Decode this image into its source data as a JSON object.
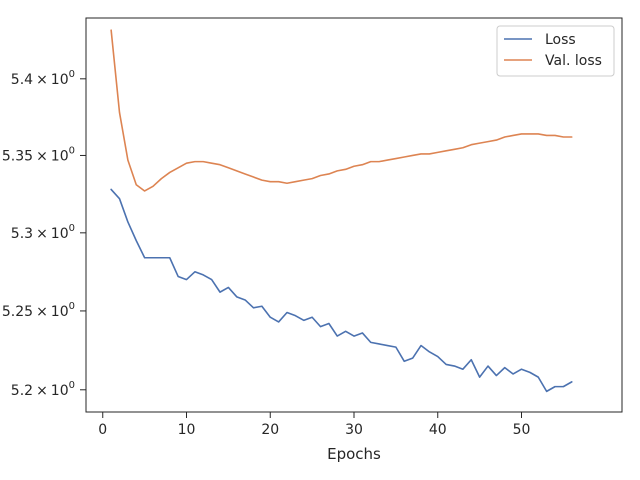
{
  "chart_data": {
    "type": "line",
    "title": "",
    "xlabel": "Epochs",
    "ylabel": "",
    "yscale": "log",
    "grid": false,
    "legend_position": "top-right",
    "xlim": [
      -2,
      62
    ],
    "ylim": [
      5.186,
      5.44
    ],
    "x_ticks": [
      0,
      10,
      20,
      30,
      40,
      50
    ],
    "x_tick_labels": [
      "0",
      "10",
      "20",
      "30",
      "40",
      "50"
    ],
    "y_ticks": [
      5.2,
      5.25,
      5.3,
      5.35,
      5.4
    ],
    "y_tick_labels": [
      {
        "mantissa": "5.2",
        "times": "×",
        "base": "10",
        "exp": "0"
      },
      {
        "mantissa": "5.25",
        "times": "×",
        "base": "10",
        "exp": "0"
      },
      {
        "mantissa": "5.3",
        "times": "×",
        "base": "10",
        "exp": "0"
      },
      {
        "mantissa": "5.35",
        "times": "×",
        "base": "10",
        "exp": "0"
      },
      {
        "mantissa": "5.4",
        "times": "×",
        "base": "10",
        "exp": "0"
      }
    ],
    "x": [
      1,
      2,
      3,
      4,
      5,
      6,
      7,
      8,
      9,
      10,
      11,
      12,
      13,
      14,
      15,
      16,
      17,
      18,
      19,
      20,
      21,
      22,
      23,
      24,
      25,
      26,
      27,
      28,
      29,
      30,
      31,
      32,
      33,
      34,
      35,
      36,
      37,
      38,
      39,
      40,
      41,
      42,
      43,
      44,
      45,
      46,
      47,
      48,
      49,
      50,
      51,
      52,
      53,
      54,
      55,
      56
    ],
    "series": [
      {
        "name": "Loss",
        "color": "#4c72b0",
        "values": [
          5.328,
          5.322,
          5.307,
          5.295,
          5.284,
          5.284,
          5.284,
          5.284,
          5.272,
          5.27,
          5.275,
          5.273,
          5.27,
          5.262,
          5.265,
          5.259,
          5.257,
          5.252,
          5.253,
          5.246,
          5.243,
          5.249,
          5.247,
          5.244,
          5.246,
          5.24,
          5.242,
          5.234,
          5.237,
          5.234,
          5.236,
          5.23,
          5.229,
          5.228,
          5.227,
          5.218,
          5.22,
          5.228,
          5.224,
          5.221,
          5.216,
          5.215,
          5.213,
          5.219,
          5.208,
          5.215,
          5.209,
          5.214,
          5.21,
          5.213,
          5.211,
          5.208,
          5.199,
          5.202,
          5.202,
          5.205
        ]
      },
      {
        "name": "Val. loss",
        "color": "#dd8452",
        "values": [
          5.432,
          5.378,
          5.347,
          5.331,
          5.327,
          5.33,
          5.335,
          5.339,
          5.342,
          5.345,
          5.346,
          5.346,
          5.345,
          5.344,
          5.342,
          5.34,
          5.338,
          5.336,
          5.334,
          5.333,
          5.333,
          5.332,
          5.333,
          5.334,
          5.335,
          5.337,
          5.338,
          5.34,
          5.341,
          5.343,
          5.344,
          5.346,
          5.346,
          5.347,
          5.348,
          5.349,
          5.35,
          5.351,
          5.351,
          5.352,
          5.353,
          5.354,
          5.355,
          5.357,
          5.358,
          5.359,
          5.36,
          5.362,
          5.363,
          5.364,
          5.364,
          5.364,
          5.363,
          5.363,
          5.362,
          5.362
        ]
      }
    ]
  }
}
